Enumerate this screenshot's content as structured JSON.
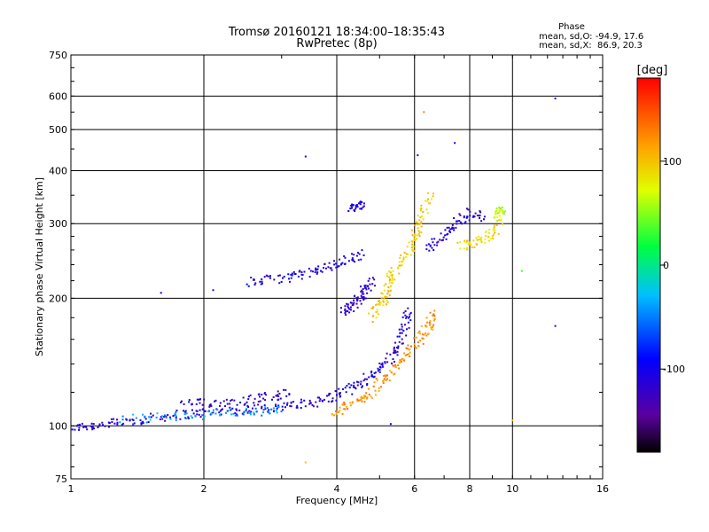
{
  "chart_data": {
    "type": "scatter",
    "title": "Tromsø 20160121 18:34:00–18:35:43",
    "subtitle": "RwPretec (8p)",
    "xlabel": "Frequency [MHz]",
    "ylabel": "Stationary phase Virtual Height [km]",
    "xscale": "log",
    "yscale": "log",
    "xlim": [
      1,
      16
    ],
    "ylim": [
      75,
      750
    ],
    "x_ticks": [
      1,
      2,
      4,
      6,
      8,
      10,
      16
    ],
    "y_ticks": [
      75,
      100,
      200,
      300,
      400,
      500,
      600,
      750
    ],
    "x_gridlines": [
      2,
      4,
      6,
      8,
      10
    ],
    "y_gridlines": [
      100,
      200,
      300,
      400,
      500,
      600
    ],
    "grid": true,
    "legend_position": "top-right",
    "stats": {
      "heading": "Phase",
      "line_o": "mean, sd,O: -94.9, 17.6",
      "line_x": "mean, sd,X:  86.9, 20.3"
    },
    "colorbar": {
      "label": "[deg]",
      "min": -180,
      "max": 180,
      "ticks": [
        100,
        0,
        -100
      ]
    },
    "traces": [
      {
        "name": "",
        "phase": -110,
        "points": [
          [
            1.0,
            99
          ],
          [
            1.1,
            100
          ],
          [
            1.2,
            101
          ],
          [
            1.35,
            102
          ],
          [
            1.5,
            104
          ],
          [
            1.7,
            106
          ],
          [
            1.9,
            107
          ],
          [
            2.1,
            108
          ],
          [
            2.4,
            109
          ],
          [
            2.7,
            110
          ],
          [
            3.0,
            111
          ],
          [
            3.3,
            112
          ],
          [
            3.6,
            114
          ],
          [
            3.9,
            117
          ],
          [
            4.2,
            121
          ],
          [
            4.5,
            126
          ],
          [
            4.8,
            132
          ],
          [
            5.1,
            139
          ],
          [
            5.4,
            148
          ],
          [
            5.6,
            160
          ],
          [
            5.75,
            175
          ],
          [
            5.85,
            188
          ]
        ]
      },
      {
        "name": "",
        "phase": -40,
        "points": [
          [
            1.3,
            103
          ],
          [
            1.6,
            105
          ],
          [
            1.9,
            106
          ],
          [
            2.3,
            107
          ],
          [
            2.7,
            108
          ],
          [
            3.0,
            109
          ]
        ]
      },
      {
        "name": "",
        "phase": -115,
        "points": [
          [
            1.8,
            113
          ],
          [
            2.0,
            113
          ],
          [
            2.3,
            114
          ],
          [
            2.6,
            116
          ],
          [
            2.9,
            118
          ],
          [
            3.1,
            119
          ]
        ]
      },
      {
        "name": "",
        "phase": -105,
        "points": [
          [
            2.5,
            218
          ],
          [
            2.8,
            221
          ],
          [
            3.1,
            224
          ],
          [
            3.4,
            228
          ],
          [
            3.7,
            234
          ],
          [
            4.0,
            241
          ],
          [
            4.3,
            248
          ],
          [
            4.55,
            255
          ]
        ]
      },
      {
        "name": "",
        "phase": -115,
        "points": [
          [
            4.1,
            185
          ],
          [
            4.3,
            190
          ],
          [
            4.4,
            196
          ],
          [
            4.55,
            203
          ],
          [
            4.7,
            212
          ],
          [
            4.8,
            220
          ]
        ]
      },
      {
        "name": "",
        "phase": -105,
        "points": [
          [
            4.3,
            325
          ],
          [
            4.4,
            330
          ],
          [
            4.6,
            335
          ]
        ]
      },
      {
        "name": "",
        "phase": 120,
        "points": [
          [
            3.9,
            106
          ],
          [
            4.2,
            111
          ],
          [
            4.5,
            115
          ],
          [
            4.8,
            120
          ],
          [
            5.1,
            128
          ],
          [
            5.4,
            136
          ],
          [
            5.7,
            145
          ],
          [
            6.0,
            155
          ],
          [
            6.3,
            165
          ],
          [
            6.5,
            175
          ],
          [
            6.6,
            185
          ]
        ]
      },
      {
        "name": "",
        "phase": 95,
        "points": [
          [
            4.8,
            180
          ],
          [
            5.0,
            190
          ],
          [
            5.1,
            200
          ],
          [
            5.2,
            212
          ],
          [
            5.3,
            225
          ],
          [
            5.5,
            238
          ],
          [
            5.8,
            255
          ],
          [
            6.0,
            275
          ],
          [
            6.1,
            295
          ],
          [
            6.3,
            320
          ],
          [
            6.5,
            350
          ]
        ]
      },
      {
        "name": "",
        "phase": 90,
        "points": [
          [
            7.6,
            265
          ],
          [
            8.0,
            268
          ],
          [
            8.5,
            275
          ],
          [
            9.0,
            285
          ],
          [
            9.4,
            300
          ]
        ]
      },
      {
        "name": "",
        "phase": -110,
        "points": [
          [
            6.4,
            260
          ],
          [
            6.8,
            275
          ],
          [
            7.2,
            290
          ],
          [
            7.6,
            305
          ],
          [
            8.1,
            320
          ],
          [
            8.6,
            310
          ]
        ]
      },
      {
        "name": "",
        "phase": 60,
        "points": [
          [
            9.2,
            310
          ],
          [
            9.4,
            320
          ],
          [
            9.6,
            330
          ]
        ]
      }
    ],
    "isolated_points": [
      {
        "x": 6.3,
        "y": 550,
        "phase": 130
      },
      {
        "x": 7.4,
        "y": 465,
        "phase": -110
      },
      {
        "x": 6.1,
        "y": 435,
        "phase": -110
      },
      {
        "x": 3.4,
        "y": 432,
        "phase": -110
      },
      {
        "x": 12.5,
        "y": 592,
        "phase": -110
      },
      {
        "x": 3.4,
        "y": 82,
        "phase": 100
      },
      {
        "x": 1.6,
        "y": 206,
        "phase": -110
      },
      {
        "x": 2.1,
        "y": 209,
        "phase": -110
      },
      {
        "x": 10.5,
        "y": 232,
        "phase": 30
      },
      {
        "x": 12.5,
        "y": 172,
        "phase": -110
      },
      {
        "x": 10.0,
        "y": 103,
        "phase": 100
      },
      {
        "x": 5.3,
        "y": 101,
        "phase": -110
      }
    ]
  }
}
